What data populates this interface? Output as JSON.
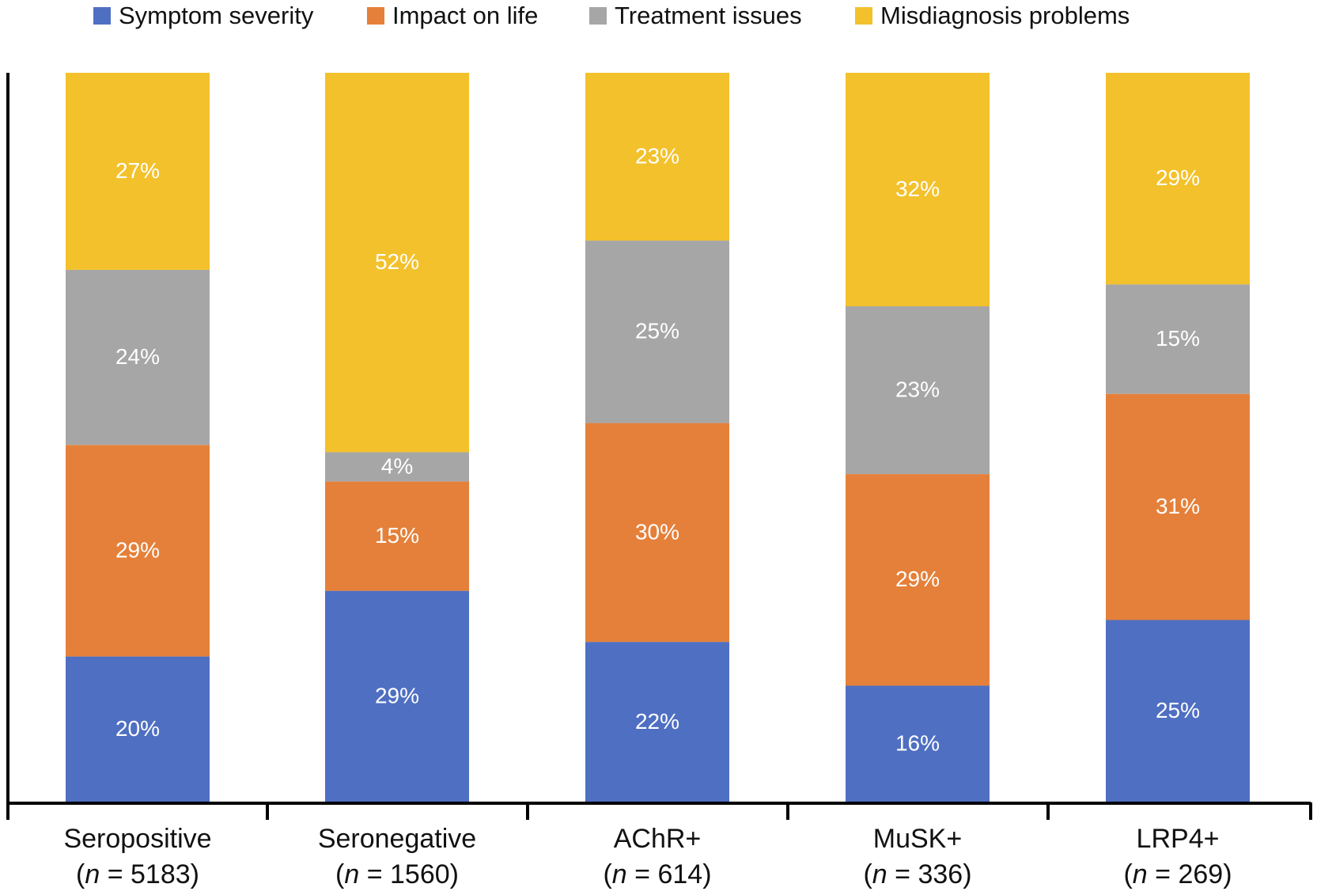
{
  "chart_data": {
    "type": "bar",
    "stacked": true,
    "title": "",
    "xlabel": "",
    "ylabel": "",
    "ylim": [
      0,
      100
    ],
    "legend_position": "top",
    "categories": [
      "Seropositive",
      "Seronegative",
      "AChR+",
      "MuSK+",
      "LRP4+"
    ],
    "sample_sizes": [
      "(n = 5183)",
      "(n = 1560)",
      "(n = 614)",
      "(n = 336)",
      "(n = 269)"
    ],
    "n_prefix": "(",
    "n_italic": "n",
    "n_values": [
      " = 5183)",
      " = 1560)",
      " = 614)",
      " = 336)",
      " = 269)"
    ],
    "series": [
      {
        "name": "Symptom severity",
        "color": "#4f6fc2",
        "values": [
          20,
          29,
          22,
          16,
          25
        ]
      },
      {
        "name": "Impact on life",
        "color": "#e5803a",
        "values": [
          29,
          15,
          30,
          29,
          31
        ]
      },
      {
        "name": "Treatment issues",
        "color": "#a6a6a6",
        "values": [
          24,
          4,
          25,
          23,
          15
        ]
      },
      {
        "name": "Misdiagnosis problems",
        "color": "#f3c12b",
        "values": [
          27,
          52,
          23,
          32,
          29
        ]
      }
    ],
    "value_suffix": "%"
  }
}
